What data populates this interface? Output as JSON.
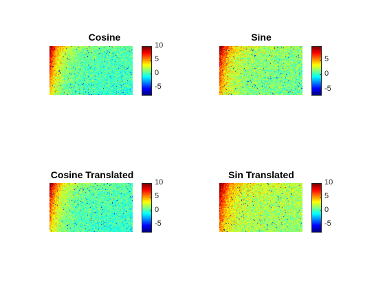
{
  "chart_data": [
    {
      "type": "heatmap",
      "title": "Cosine",
      "colormap": "jet",
      "grid": false,
      "color_range": [
        -8,
        10
      ],
      "colorbar_ticks": [
        "10",
        "5",
        "0",
        "-5"
      ],
      "colorbar_tick_values": [
        10,
        5,
        0,
        -5
      ],
      "pattern": {
        "base": 0.3,
        "edge": 9.0,
        "noise": 2.0
      }
    },
    {
      "type": "heatmap",
      "title": "Sine",
      "colormap": "jet",
      "grid": false,
      "color_range": [
        -7,
        9.5
      ],
      "colorbar_ticks": [
        "5",
        "0",
        "-5"
      ],
      "colorbar_tick_values": [
        5,
        0,
        -5
      ],
      "pattern": {
        "base": 1.5,
        "edge": 7.5,
        "noise": 2.2
      }
    },
    {
      "type": "heatmap",
      "title": "Cosine Translated",
      "colormap": "jet",
      "grid": false,
      "color_range": [
        -8,
        10
      ],
      "colorbar_ticks": [
        "10",
        "5",
        "0",
        "-5"
      ],
      "colorbar_tick_values": [
        10,
        5,
        0,
        -5
      ],
      "pattern": {
        "base": 0.3,
        "edge": 9.0,
        "noise": 2.0
      }
    },
    {
      "type": "heatmap",
      "title": "Sin Translated",
      "colormap": "jet",
      "grid": false,
      "color_range": [
        -8,
        10
      ],
      "colorbar_ticks": [
        "10",
        "5",
        "0",
        "-5"
      ],
      "colorbar_tick_values": [
        10,
        5,
        0,
        -5
      ],
      "pattern": {
        "base": 2.0,
        "edge": 7.8,
        "noise": 2.2
      }
    }
  ]
}
